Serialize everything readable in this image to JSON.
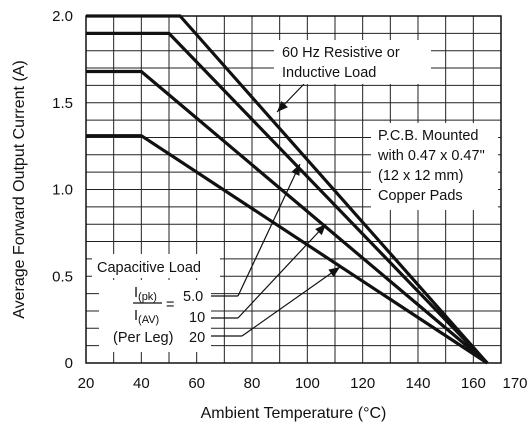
{
  "chart_data": {
    "type": "line",
    "title": "",
    "xlabel": "Ambient Temperature (°C)",
    "ylabel": "Average Forward Output Current (A)",
    "xlim": [
      20,
      170
    ],
    "ylim": [
      0,
      2.0
    ],
    "x_ticks": [
      20,
      40,
      60,
      80,
      100,
      120,
      140,
      160
    ],
    "x_tick_labels": [
      "20",
      "40",
      "60",
      "80",
      "100",
      "120",
      "140",
      "160"
    ],
    "x_end_label": "170",
    "y_ticks": [
      0,
      0.5,
      1.0,
      1.5,
      2.0
    ],
    "y_tick_labels": [
      "0",
      "0.5",
      "1.0",
      "1.5",
      "2.0"
    ],
    "grid": true,
    "series": [
      {
        "points": [
          [
            20,
            2.0
          ],
          [
            54,
            2.0
          ],
          [
            165,
            0
          ]
        ]
      },
      {
        "points": [
          [
            20,
            1.9
          ],
          [
            50,
            1.9
          ],
          [
            165,
            0
          ]
        ]
      },
      {
        "points": [
          [
            20,
            1.68
          ],
          [
            40,
            1.68
          ],
          [
            165,
            0
          ]
        ]
      },
      {
        "points": [
          [
            20,
            1.31
          ],
          [
            40,
            1.31
          ],
          [
            165,
            0
          ]
        ]
      }
    ],
    "annotations": {
      "resistive": [
        "60 Hz Resistive or",
        "Inductive Load"
      ],
      "pcb": [
        "P.C.B. Mounted",
        "with 0.47 x 0.47\"",
        "(12 x 12 mm)",
        "Copper Pads"
      ],
      "capacitive": "Capacitive Load",
      "ratio_numerator": "I(pk)",
      "ratio_denominator": "I(AV)",
      "ratio_equals": "=",
      "ratio_values": [
        "5.0",
        "10",
        "20"
      ],
      "per_leg": "(Per Leg)"
    }
  }
}
